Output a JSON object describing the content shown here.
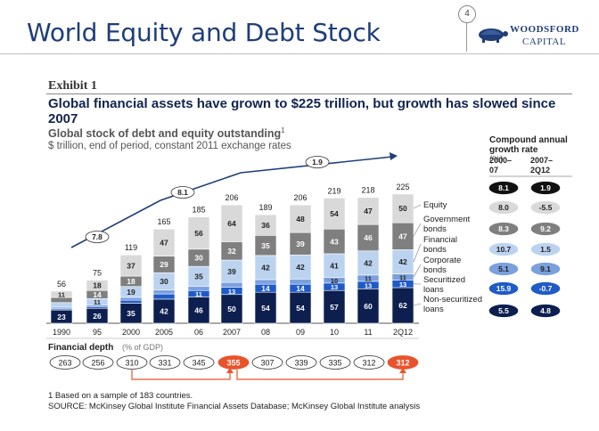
{
  "slide": {
    "title": "World Equity and Debt Stock",
    "page_number": "4",
    "logo_line1": "WOODSFORD",
    "logo_line2": "CAPITAL"
  },
  "exhibit": {
    "label": "Exhibit 1",
    "headline": "Global financial assets have grown to $225 trillion, but growth has slowed since 2007",
    "subtitle": "Global stock of debt and equity outstanding",
    "subtitle_footnote_mark": "1",
    "units": "$ trillion, end of period, constant 2011 exchange rates"
  },
  "chart_data": {
    "type": "bar",
    "stacked": true,
    "categories": [
      "1990",
      "95",
      "2000",
      "2005",
      "06",
      "2007",
      "08",
      "09",
      "10",
      "11",
      "2Q12"
    ],
    "series": [
      {
        "name": "Non-securitized loans",
        "color": "#0c1f4f",
        "values": [
          23,
          26,
          35,
          42,
          46,
          50,
          54,
          54,
          57,
          60,
          62
        ]
      },
      {
        "name": "Securitized loans",
        "color": "#1f5bc7",
        "values": [
          2,
          3,
          5,
          9,
          11,
          13,
          14,
          14,
          13,
          13,
          13
        ]
      },
      {
        "name": "Corporate bonds",
        "color": "#7aa0dd",
        "values": [
          3,
          3,
          5,
          7,
          7,
          8,
          8,
          9,
          10,
          11,
          11
        ]
      },
      {
        "name": "Financial bonds",
        "color": "#bcd3f0",
        "values": [
          8,
          11,
          19,
          30,
          35,
          39,
          42,
          42,
          41,
          42,
          42
        ]
      },
      {
        "name": "Government bonds",
        "color": "#7f7f7f",
        "values": [
          9,
          14,
          18,
          29,
          30,
          32,
          35,
          39,
          43,
          46,
          47
        ]
      },
      {
        "name": "Equity",
        "color": "#d9d9d9",
        "values": [
          11,
          18,
          37,
          47,
          56,
          64,
          36,
          48,
          54,
          47,
          50
        ]
      }
    ],
    "totals": [
      56,
      75,
      119,
      165,
      185,
      206,
      189,
      206,
      219,
      218,
      225
    ],
    "total_callouts": [
      {
        "from": "1990",
        "to": "2000",
        "label": "7.8"
      },
      {
        "from": "2000",
        "to": "2007",
        "label": "8.1"
      },
      {
        "from": "2007",
        "to": "2Q12",
        "label": "1.9"
      }
    ],
    "growth_table": {
      "title": "Compound annual growth rate",
      "title_suffix": "(%)",
      "columns": [
        "2000–07",
        "2007–2Q12"
      ],
      "col1_lines": [
        "2000–",
        "07"
      ],
      "col2_lines": [
        "2007–",
        "2Q12"
      ],
      "total_row": [
        "8.1",
        "1.9"
      ],
      "rows": [
        {
          "series": "Equity",
          "values": [
            "8.0",
            "-5.5"
          ]
        },
        {
          "series": "Government bonds",
          "values": [
            "8.3",
            "9.2"
          ]
        },
        {
          "series": "Financial bonds",
          "values": [
            "10.7",
            "1.5"
          ]
        },
        {
          "series": "Corporate bonds",
          "values": [
            "5.1",
            "9.1"
          ]
        },
        {
          "series": "Securitized loans",
          "values": [
            "15.9",
            "-0.7"
          ]
        },
        {
          "series": "Non-securitized loans",
          "values": [
            "5.5",
            "4.8"
          ]
        }
      ]
    },
    "legend": [
      [
        "Equity"
      ],
      [
        "Government",
        "bonds"
      ],
      [
        "Financial",
        "bonds"
      ],
      [
        "Corporate",
        "bonds"
      ],
      [
        "Securitized",
        "loans"
      ],
      [
        "Non-securitized",
        "loans"
      ]
    ],
    "financial_depth": {
      "label": "Financial depth",
      "label_suffix": "(% of GDP)",
      "values": [
        "263",
        "256",
        "310",
        "331",
        "345",
        "355",
        "307",
        "339",
        "335",
        "312",
        "312"
      ],
      "highlighted": [
        "2007",
        "2Q12"
      ],
      "highlight_color": "#e8532b"
    }
  },
  "footnote": "1  Based on a sample of 183 countries.",
  "source": "SOURCE: McKinsey Global Institute Financial Assets Database; McKinsey Global Institute analysis"
}
